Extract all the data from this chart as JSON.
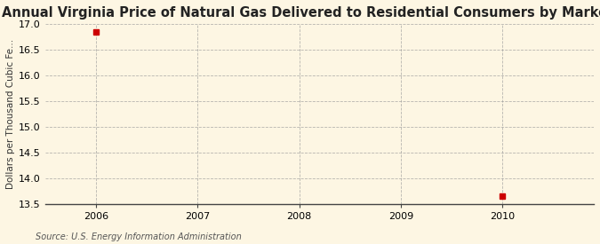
{
  "title": "Annual Virginia Price of Natural Gas Delivered to Residential Consumers by Marketers",
  "ylabel": "Dollars per Thousand Cubic Fe...",
  "source": "Source: U.S. Energy Information Administration",
  "x_data": [
    2006,
    2010
  ],
  "y_data": [
    16.85,
    13.65
  ],
  "marker_color": "#cc0000",
  "marker_size": 4,
  "xlim": [
    2005.5,
    2010.9
  ],
  "ylim": [
    13.5,
    17.0
  ],
  "yticks": [
    13.5,
    14.0,
    14.5,
    15.0,
    15.5,
    16.0,
    16.5,
    17.0
  ],
  "xticks": [
    2006,
    2007,
    2008,
    2009,
    2010
  ],
  "bg_color": "#fdf6e3",
  "plot_bg_color": "#fdf6e3",
  "grid_color": "#999999",
  "title_fontsize": 10.5,
  "label_fontsize": 7.5,
  "tick_fontsize": 8,
  "source_fontsize": 7
}
